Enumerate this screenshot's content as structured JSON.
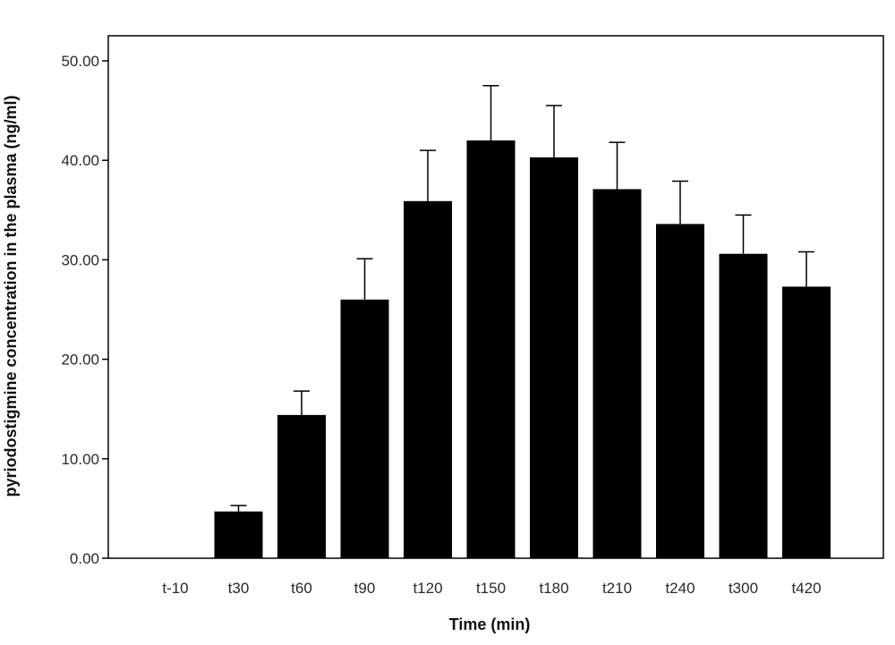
{
  "chart_data": {
    "type": "bar",
    "title": "",
    "xlabel": "Time (min)",
    "ylabel": "pyriodostigmine concentration in the plasma (ng/ml)",
    "categories": [
      "t-10",
      "t30",
      "t60",
      "t90",
      "t120",
      "t150",
      "t180",
      "t210",
      "t240",
      "t300",
      "t420"
    ],
    "values": [
      0.0,
      4.7,
      14.4,
      26.0,
      35.9,
      42.0,
      40.3,
      37.1,
      33.6,
      30.6,
      27.3
    ],
    "error_upper": [
      0.0,
      5.3,
      16.8,
      30.1,
      41.0,
      47.5,
      45.5,
      41.8,
      37.9,
      34.5,
      30.8
    ],
    "ylim": [
      0,
      52
    ],
    "yticks": [
      "0.00",
      "10.00",
      "20.00",
      "30.00",
      "40.00",
      "50.00"
    ],
    "ytick_values": [
      0,
      10,
      20,
      30,
      40,
      50
    ],
    "grid": false,
    "legend": "none",
    "bar_color": "#000000",
    "frame_color": "#000000"
  }
}
